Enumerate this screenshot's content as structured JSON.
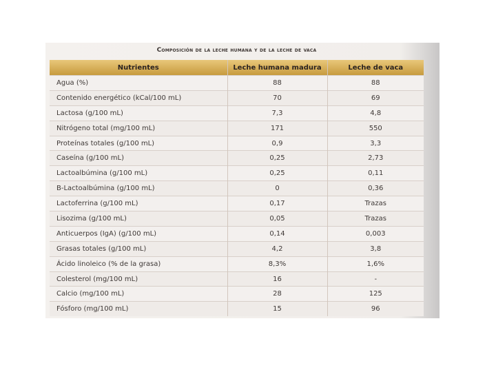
{
  "table": {
    "title": "Composición de la leche humana y de la leche de vaca",
    "header": [
      "Nutrientes",
      "Leche humana madura",
      "Leche de vaca"
    ],
    "rows": [
      [
        "Agua (%)",
        "88",
        "88"
      ],
      [
        "Contenido energético (kCal/100 mL)",
        "70",
        "69"
      ],
      [
        "Lactosa (g/100 mL)",
        "7,3",
        "4,8"
      ],
      [
        "Nitrógeno total (mg/100 mL)",
        "171",
        "550"
      ],
      [
        "Proteínas totales (g/100 mL)",
        "0,9",
        "3,3"
      ],
      [
        "Caseína (g/100 mL)",
        "0,25",
        "2,73"
      ],
      [
        "Lactoalbúmina (g/100 mL)",
        "0,25",
        "0,11"
      ],
      [
        "B-Lactoalbúmina (g/100 mL)",
        "0",
        "0,36"
      ],
      [
        "Lactoferrina (g/100 mL)",
        "0,17",
        "Trazas"
      ],
      [
        "Lisozima (g/100 mL)",
        "0,05",
        "Trazas"
      ],
      [
        "Anticuerpos (IgA) (g/100 mL)",
        "0,14",
        "0,003"
      ],
      [
        "Grasas totales (g/100 mL)",
        "4,2",
        "3,8"
      ],
      [
        "Ácido linoleico (% de la grasa)",
        "8,3%",
        "1,6%"
      ],
      [
        "Colesterol (mg/100 mL)",
        "16",
        "-"
      ],
      [
        "Calcio (mg/100 mL)",
        "28",
        "125"
      ],
      [
        "Fósforo (mg/100 mL)",
        "15",
        "96"
      ]
    ]
  }
}
